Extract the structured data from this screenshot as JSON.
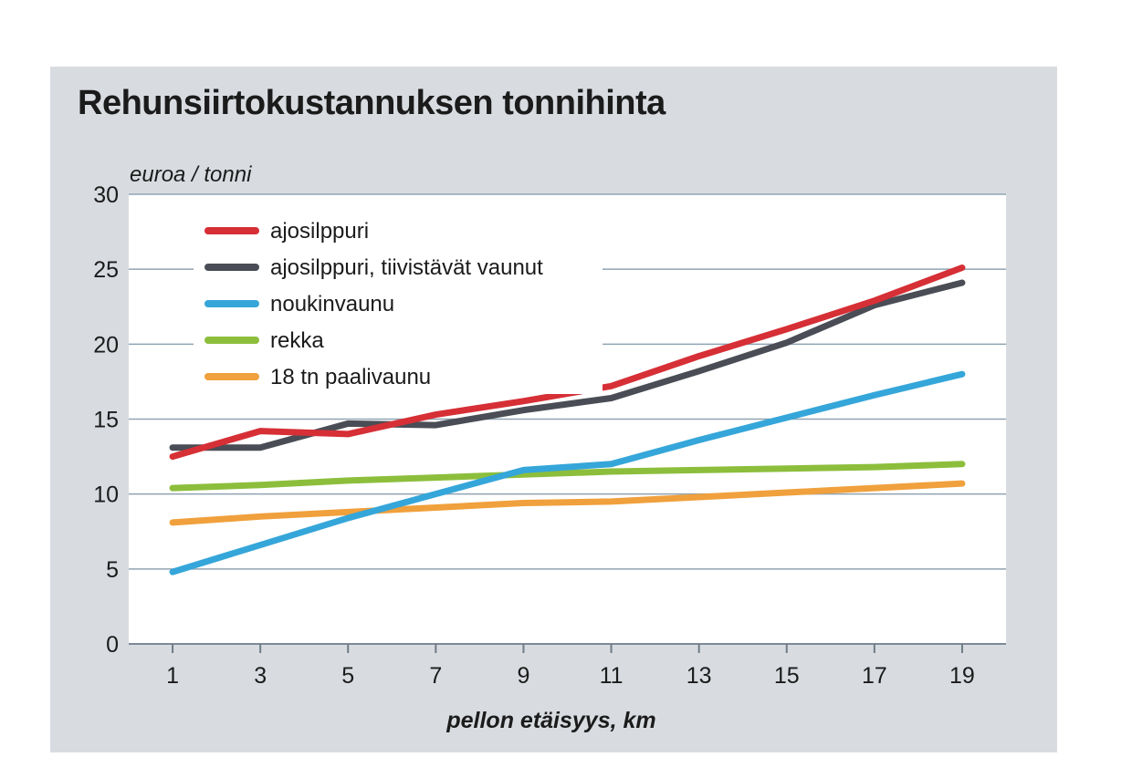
{
  "chart_data": {
    "type": "line",
    "title": "Rehunsiirtokustannuksen tonnihinta",
    "ylabel": "euroa / tonni",
    "xlabel": "pellon etäisyys, km",
    "x": [
      1,
      3,
      5,
      7,
      9,
      11,
      13,
      15,
      17,
      19
    ],
    "xlim": [
      0,
      20
    ],
    "ylim": [
      0,
      30
    ],
    "yticks": [
      0,
      5,
      10,
      15,
      20,
      25,
      30
    ],
    "grid": "horizontal",
    "legend_position": "top-left",
    "series": [
      {
        "name": "ajosilppuri",
        "color": "#d62f36",
        "values": [
          12.5,
          14.2,
          14.0,
          15.3,
          16.2,
          17.2,
          19.2,
          21.0,
          22.9,
          25.1
        ]
      },
      {
        "name": "ajosilppuri, tiivistävät vaunut",
        "color": "#4a4d55",
        "values": [
          13.1,
          13.1,
          14.7,
          14.6,
          15.6,
          16.4,
          18.2,
          20.1,
          22.6,
          24.1
        ]
      },
      {
        "name": "noukinvaunu",
        "color": "#35a6d9",
        "values": [
          4.8,
          6.6,
          8.4,
          10.0,
          11.6,
          12.0,
          13.6,
          15.1,
          16.6,
          18.0
        ]
      },
      {
        "name": "rekka",
        "color": "#8cbe3c",
        "values": [
          10.4,
          10.6,
          10.9,
          11.1,
          11.3,
          11.5,
          11.6,
          11.7,
          11.8,
          12.0
        ]
      },
      {
        "name": "18 tn paalivaunu",
        "color": "#f0a03c",
        "values": [
          8.1,
          8.5,
          8.8,
          9.1,
          9.4,
          9.5,
          9.8,
          10.1,
          10.4,
          10.7
        ]
      }
    ]
  }
}
